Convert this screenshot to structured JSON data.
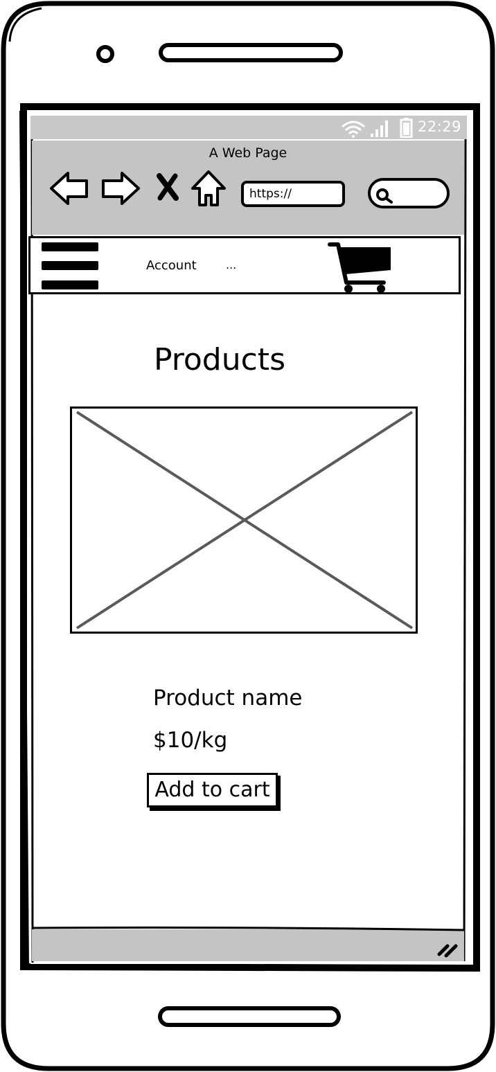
{
  "status_bar": {
    "time": "22:29",
    "icons": [
      "wifi-icon",
      "signal-icon",
      "battery-icon"
    ]
  },
  "browser": {
    "page_title": "A Web Page",
    "url_value": "https://",
    "nav_icons": [
      "back-arrow-icon",
      "forward-arrow-icon",
      "close-icon",
      "home-icon"
    ],
    "search_icon": "search-icon"
  },
  "nav": {
    "menu_icon": "hamburger-menu-icon",
    "account_label": "Account",
    "more_label": "...",
    "cart_icon": "shopping-cart-icon"
  },
  "main": {
    "heading": "Products",
    "image_icon": "image-placeholder-icon",
    "product": {
      "name": "Product name",
      "price": "$10/kg",
      "add_to_cart_label": "Add to cart"
    }
  },
  "footer": {
    "resize_icon": "resize-grip-icon"
  },
  "colors": {
    "chrome_gray": "#c4c4c4",
    "status_gray": "#c9c9c9",
    "placeholder_line": "#5a5a5a"
  }
}
